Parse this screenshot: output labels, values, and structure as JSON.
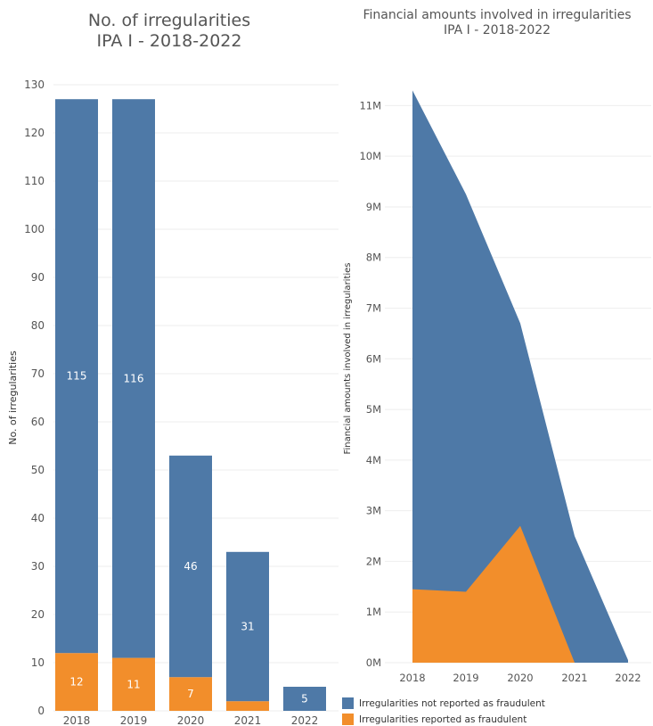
{
  "charts": [
    {
      "title_line1": "No. of irregularities",
      "title_line2": "IPA I - 2018-2022"
    },
    {
      "title_line1": "Financial amounts involved in irregularities",
      "title_line2": "IPA I - 2018-2022"
    }
  ],
  "colors": {
    "not_fraud": "#4e79a7",
    "fraud": "#f28e2b",
    "grid": "#eeeeee",
    "text": "#555555"
  },
  "legend": [
    {
      "label": "Irregularities not reported as fraudulent",
      "color": "#4e79a7"
    },
    {
      "label": "Irregularities reported as fraudulent",
      "color": "#f28e2b"
    }
  ],
  "chart_data": [
    {
      "type": "bar",
      "stacked": true,
      "title": "No. of irregularities\nIPA I - 2018-2022",
      "xlabel": "",
      "ylabel": "No. of irregularities",
      "categories": [
        "2018",
        "2019",
        "2020",
        "2021",
        "2022"
      ],
      "series": [
        {
          "name": "Irregularities reported as fraudulent",
          "values": [
            12,
            11,
            7,
            2,
            0
          ],
          "labels": [
            "12",
            "11",
            "7",
            "",
            ""
          ]
        },
        {
          "name": "Irregularities not reported as fraudulent",
          "values": [
            115,
            116,
            46,
            31,
            5
          ],
          "labels": [
            "115",
            "116",
            "46",
            "31",
            "5"
          ]
        }
      ],
      "ylim": [
        0,
        130
      ],
      "yticks": [
        0,
        10,
        20,
        30,
        40,
        50,
        60,
        70,
        80,
        90,
        100,
        110,
        120,
        130
      ],
      "grid": true
    },
    {
      "type": "area",
      "stacked": false,
      "title": "Financial amounts involved in irregularities\nIPA I - 2018-2022",
      "xlabel": "",
      "ylabel": "Financial amounts involved in irregularities",
      "x": [
        "2018",
        "2019",
        "2020",
        "2021",
        "2022"
      ],
      "series": [
        {
          "name": "Irregularities not reported as fraudulent",
          "values": [
            11300000,
            9250000,
            6700000,
            2500000,
            50000
          ]
        },
        {
          "name": "Irregularities reported as fraudulent",
          "values": [
            1450000,
            1400000,
            2700000,
            0,
            0
          ]
        }
      ],
      "ylim": [
        0,
        11500000
      ],
      "yticks": [
        0,
        1000000,
        2000000,
        3000000,
        4000000,
        5000000,
        6000000,
        7000000,
        8000000,
        9000000,
        10000000,
        11000000
      ],
      "ytick_labels": [
        "0M",
        "1M",
        "2M",
        "3M",
        "4M",
        "5M",
        "6M",
        "7M",
        "8M",
        "9M",
        "10M",
        "11M"
      ],
      "grid": true,
      "legend_position": "bottom"
    }
  ]
}
